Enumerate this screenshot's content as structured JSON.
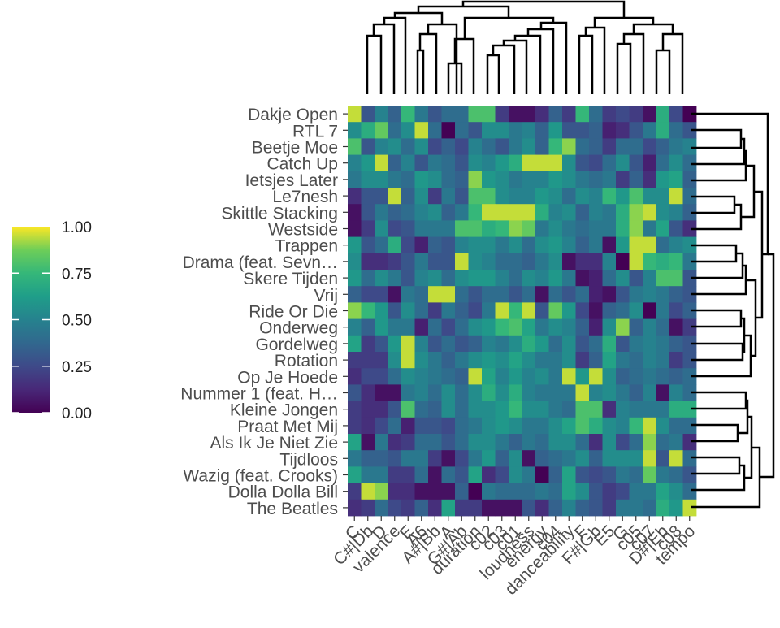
{
  "chart_data": {
    "type": "heatmap",
    "title": "",
    "xlabel": "",
    "ylabel": "",
    "value_range": [
      0,
      1
    ],
    "colorscale": "viridis",
    "legend": {
      "position": "left",
      "ticks": [
        "1.00",
        "0.75",
        "0.50",
        "0.25",
        "0.00"
      ]
    },
    "rows": [
      "Dakje Open",
      "RTL 7",
      "Beetje Moe",
      "Catch Up",
      "Ietsjes Later",
      "Le7nesh",
      "Skittle Stacking",
      "Westside",
      "Trappen",
      "Drama (feat. Sevn…",
      "Skere Tijden",
      "Vrij",
      "Ride Or Die",
      "Onderweg",
      "Gordelweg",
      "Rotation",
      "Op Je Hoede",
      "Nummer 1 (feat. H…",
      "Kleine Jongen",
      "Praat Met Mij",
      "Als Ik Je Niet Zie",
      "Tijdloos",
      "Wazig (feat. Crooks)",
      "Dolla Dolla Bill",
      "The Beatles"
    ],
    "columns": [
      "C",
      "C#|Db",
      "D",
      "valence",
      "E",
      "A6",
      "A#|Bb",
      "A",
      "G#|Ab",
      "duration",
      "c02",
      "c03",
      "c01",
      "loudness",
      "energy",
      "c04",
      "danceability",
      "F",
      "F#|Gb",
      "E5",
      "G",
      "c05",
      "c07",
      "D#|Eb",
      "c08",
      "tempo"
    ],
    "values": [
      [
        0.95,
        0.3,
        0.5,
        0.35,
        0.75,
        0.45,
        0.3,
        0.4,
        0.4,
        0.8,
        0.8,
        0.2,
        0.05,
        0.05,
        0.15,
        0.35,
        0.2,
        0.75,
        0.4,
        0.2,
        0.25,
        0.2,
        0.05,
        0.7,
        0.25,
        0.0
      ],
      [
        0.55,
        0.7,
        0.85,
        0.4,
        0.55,
        0.95,
        0.4,
        0.0,
        0.4,
        0.3,
        0.55,
        0.55,
        0.45,
        0.5,
        0.35,
        0.6,
        0.3,
        0.3,
        0.35,
        0.1,
        0.15,
        0.3,
        0.45,
        0.7,
        0.4,
        0.3
      ],
      [
        0.8,
        0.3,
        0.5,
        0.55,
        0.4,
        0.55,
        0.25,
        0.35,
        0.25,
        0.5,
        0.4,
        0.3,
        0.45,
        0.55,
        0.35,
        0.75,
        0.9,
        0.4,
        0.35,
        0.2,
        0.4,
        0.4,
        0.25,
        0.35,
        0.45,
        0.5
      ],
      [
        0.5,
        0.6,
        0.95,
        0.35,
        0.5,
        0.3,
        0.45,
        0.4,
        0.3,
        0.55,
        0.5,
        0.6,
        0.7,
        0.95,
        0.95,
        0.95,
        0.55,
        0.3,
        0.25,
        0.4,
        0.55,
        0.3,
        0.1,
        0.4,
        0.55,
        0.4
      ],
      [
        0.45,
        0.55,
        0.55,
        0.45,
        0.4,
        0.6,
        0.55,
        0.4,
        0.35,
        0.9,
        0.6,
        0.55,
        0.45,
        0.5,
        0.5,
        0.6,
        0.55,
        0.45,
        0.4,
        0.45,
        0.2,
        0.35,
        0.15,
        0.6,
        0.65,
        0.35
      ],
      [
        0.15,
        0.3,
        0.3,
        0.95,
        0.35,
        0.55,
        0.2,
        0.45,
        0.3,
        0.8,
        0.8,
        0.55,
        0.5,
        0.5,
        0.6,
        0.55,
        0.4,
        0.55,
        0.5,
        0.75,
        0.6,
        0.8,
        0.55,
        0.55,
        0.95,
        0.4
      ],
      [
        0.05,
        0.3,
        0.45,
        0.35,
        0.4,
        0.5,
        0.55,
        0.35,
        0.45,
        0.75,
        0.95,
        0.95,
        0.95,
        0.95,
        0.7,
        0.5,
        0.55,
        0.35,
        0.5,
        0.45,
        0.7,
        0.9,
        0.95,
        0.55,
        0.5,
        0.35
      ],
      [
        0.05,
        0.2,
        0.55,
        0.25,
        0.3,
        0.45,
        0.45,
        0.45,
        0.8,
        0.8,
        0.7,
        0.75,
        0.9,
        0.85,
        0.45,
        0.55,
        0.45,
        0.4,
        0.45,
        0.45,
        0.7,
        0.9,
        0.45,
        0.65,
        0.3,
        0.15
      ],
      [
        0.6,
        0.3,
        0.4,
        0.7,
        0.25,
        0.1,
        0.35,
        0.3,
        0.5,
        0.55,
        0.55,
        0.45,
        0.55,
        0.4,
        0.55,
        0.6,
        0.5,
        0.35,
        0.45,
        0.05,
        0.6,
        0.95,
        0.95,
        0.4,
        0.5,
        0.55
      ],
      [
        0.55,
        0.15,
        0.15,
        0.2,
        0.3,
        0.45,
        0.3,
        0.3,
        0.95,
        0.55,
        0.5,
        0.4,
        0.4,
        0.35,
        0.45,
        0.55,
        0.05,
        0.15,
        0.15,
        0.5,
        0.0,
        0.95,
        0.75,
        0.7,
        0.75,
        0.45
      ],
      [
        0.6,
        0.4,
        0.55,
        0.45,
        0.3,
        0.5,
        0.55,
        0.4,
        0.55,
        0.6,
        0.6,
        0.5,
        0.4,
        0.55,
        0.5,
        0.6,
        0.45,
        0.05,
        0.1,
        0.4,
        0.55,
        0.3,
        0.5,
        0.8,
        0.8,
        0.3
      ],
      [
        0.35,
        0.25,
        0.25,
        0.05,
        0.45,
        0.4,
        0.95,
        0.95,
        0.4,
        0.3,
        0.4,
        0.4,
        0.3,
        0.4,
        0.05,
        0.4,
        0.3,
        0.4,
        0.1,
        0.05,
        0.3,
        0.45,
        0.5,
        0.45,
        0.35,
        0.3
      ],
      [
        0.9,
        0.75,
        0.6,
        0.3,
        0.55,
        0.4,
        0.2,
        0.45,
        0.35,
        0.25,
        0.45,
        0.95,
        0.75,
        0.95,
        0.3,
        0.85,
        0.6,
        0.25,
        0.05,
        0.35,
        0.4,
        0.55,
        0.0,
        0.45,
        0.25,
        0.35
      ],
      [
        0.5,
        0.35,
        0.6,
        0.45,
        0.45,
        0.1,
        0.4,
        0.25,
        0.4,
        0.55,
        0.6,
        0.75,
        0.8,
        0.65,
        0.45,
        0.55,
        0.5,
        0.35,
        0.1,
        0.55,
        0.9,
        0.35,
        0.5,
        0.4,
        0.05,
        0.2
      ],
      [
        0.65,
        0.2,
        0.3,
        0.6,
        0.95,
        0.5,
        0.3,
        0.4,
        0.3,
        0.35,
        0.5,
        0.45,
        0.55,
        0.7,
        0.6,
        0.4,
        0.55,
        0.3,
        0.4,
        0.7,
        0.3,
        0.45,
        0.5,
        0.45,
        0.35,
        0.3
      ],
      [
        0.2,
        0.2,
        0.2,
        0.55,
        0.95,
        0.55,
        0.45,
        0.35,
        0.45,
        0.55,
        0.6,
        0.55,
        0.65,
        0.55,
        0.45,
        0.45,
        0.55,
        0.2,
        0.35,
        0.65,
        0.45,
        0.4,
        0.5,
        0.45,
        0.2,
        0.3
      ],
      [
        0.15,
        0.25,
        0.25,
        0.4,
        0.55,
        0.5,
        0.45,
        0.4,
        0.35,
        0.95,
        0.65,
        0.5,
        0.6,
        0.5,
        0.55,
        0.45,
        0.95,
        0.6,
        0.95,
        0.55,
        0.35,
        0.4,
        0.45,
        0.4,
        0.35,
        0.4
      ],
      [
        0.3,
        0.15,
        0.05,
        0.05,
        0.45,
        0.5,
        0.4,
        0.55,
        0.4,
        0.55,
        0.7,
        0.55,
        0.7,
        0.5,
        0.45,
        0.45,
        0.45,
        0.95,
        0.5,
        0.55,
        0.45,
        0.35,
        0.5,
        0.05,
        0.5,
        0.4
      ],
      [
        0.2,
        0.15,
        0.15,
        0.3,
        0.8,
        0.4,
        0.35,
        0.55,
        0.4,
        0.55,
        0.55,
        0.6,
        0.75,
        0.55,
        0.55,
        0.45,
        0.4,
        0.8,
        0.8,
        0.15,
        0.5,
        0.45,
        0.45,
        0.45,
        0.7,
        0.7
      ],
      [
        0.2,
        0.15,
        0.25,
        0.4,
        0.1,
        0.3,
        0.3,
        0.25,
        0.4,
        0.45,
        0.55,
        0.6,
        0.55,
        0.45,
        0.45,
        0.55,
        0.65,
        0.8,
        0.7,
        0.55,
        0.5,
        0.75,
        0.95,
        0.55,
        0.4,
        0.4
      ],
      [
        0.65,
        0.05,
        0.45,
        0.15,
        0.2,
        0.4,
        0.4,
        0.3,
        0.4,
        0.55,
        0.55,
        0.45,
        0.35,
        0.45,
        0.4,
        0.55,
        0.55,
        0.4,
        0.15,
        0.55,
        0.25,
        0.4,
        0.9,
        0.4,
        0.45,
        0.15
      ],
      [
        0.45,
        0.35,
        0.35,
        0.3,
        0.45,
        0.45,
        0.2,
        0.05,
        0.25,
        0.45,
        0.6,
        0.35,
        0.55,
        0.05,
        0.35,
        0.4,
        0.45,
        0.55,
        0.35,
        0.55,
        0.55,
        0.55,
        0.95,
        0.3,
        0.95,
        0.4
      ],
      [
        0.65,
        0.45,
        0.45,
        0.2,
        0.2,
        0.4,
        0.05,
        0.4,
        0.3,
        0.65,
        0.15,
        0.25,
        0.55,
        0.45,
        0.0,
        0.35,
        0.65,
        0.3,
        0.25,
        0.3,
        0.45,
        0.4,
        0.85,
        0.45,
        0.4,
        0.3
      ],
      [
        0.2,
        0.95,
        0.9,
        0.15,
        0.15,
        0.05,
        0.05,
        0.05,
        0.35,
        0.0,
        0.45,
        0.4,
        0.4,
        0.4,
        0.45,
        0.4,
        0.65,
        0.55,
        0.3,
        0.2,
        0.25,
        0.45,
        0.45,
        0.65,
        0.55,
        0.4
      ],
      [
        0.15,
        0.2,
        0.4,
        0.25,
        0.2,
        0.35,
        0.15,
        0.65,
        0.2,
        0.2,
        0.05,
        0.05,
        0.05,
        0.3,
        0.15,
        0.35,
        0.5,
        0.35,
        0.3,
        0.2,
        0.45,
        0.45,
        0.4,
        0.7,
        0.6,
        0.95
      ]
    ]
  }
}
